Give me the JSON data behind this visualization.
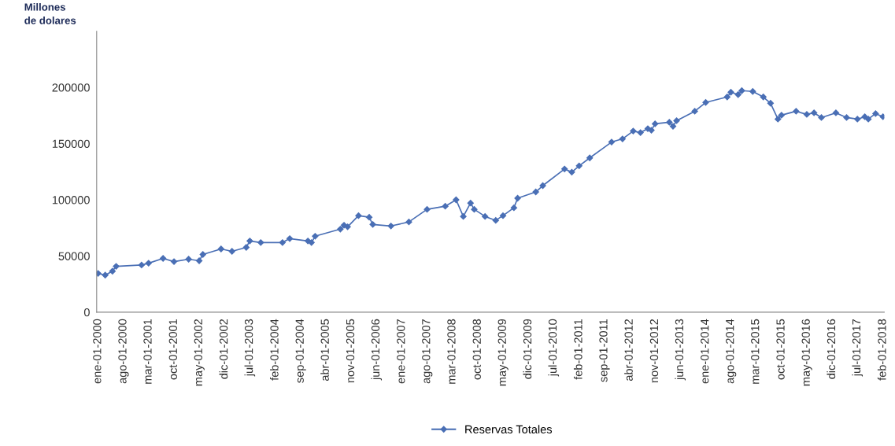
{
  "chart_data": {
    "type": "line",
    "ylabel": "Millones\nde dolares",
    "marker": "diamond",
    "line_style": "solid",
    "grid": false,
    "legend": "bottom",
    "x": [
      "2000-01",
      "2000-03",
      "2000-05",
      "2000-06",
      "2001-01",
      "2001-03",
      "2001-07",
      "2001-10",
      "2002-02",
      "2002-05",
      "2002-06",
      "2002-11",
      "2003-02",
      "2003-06",
      "2003-07",
      "2003-10",
      "2004-04",
      "2004-06",
      "2004-11",
      "2004-12",
      "2005-01",
      "2005-08",
      "2005-09",
      "2005-10",
      "2006-01",
      "2006-04",
      "2006-05",
      "2006-10",
      "2007-03",
      "2007-08",
      "2008-01",
      "2008-04",
      "2008-06",
      "2008-08",
      "2008-09",
      "2008-12",
      "2009-03",
      "2009-05",
      "2009-08",
      "2009-09",
      "2010-02",
      "2010-04",
      "2010-10",
      "2010-12",
      "2011-02",
      "2011-05",
      "2011-11",
      "2012-02",
      "2012-05",
      "2012-07",
      "2012-09",
      "2012-10",
      "2012-11",
      "2013-03",
      "2013-04",
      "2013-05",
      "2013-10",
      "2014-01",
      "2014-07",
      "2014-08",
      "2014-10",
      "2014-11",
      "2015-02",
      "2015-05",
      "2015-07",
      "2015-09",
      "2015-10",
      "2016-02",
      "2016-05",
      "2016-07",
      "2016-09",
      "2017-01",
      "2017-04",
      "2017-07",
      "2017-09",
      "2017-10",
      "2017-12",
      "2018-02"
    ],
    "series": [
      {
        "name": "Reservas Totales",
        "color": "#4a6fb5",
        "values": [
          34500,
          33000,
          36500,
          40800,
          42000,
          43600,
          47900,
          45000,
          47200,
          45800,
          51400,
          56300,
          54200,
          57700,
          63400,
          62000,
          62000,
          65500,
          63400,
          62000,
          67600,
          73900,
          77400,
          76000,
          85900,
          84500,
          78100,
          76700,
          80300,
          91500,
          94300,
          100000,
          85200,
          97100,
          91500,
          85200,
          81700,
          85900,
          92900,
          101400,
          107000,
          112600,
          127400,
          124600,
          130200,
          137300,
          151400,
          154200,
          161200,
          159800,
          163300,
          161900,
          167600,
          169000,
          165400,
          170400,
          178800,
          186600,
          191500,
          195700,
          193600,
          197100,
          196400,
          191500,
          185900,
          171800,
          175300,
          178800,
          176000,
          177400,
          173200,
          177400,
          173200,
          171800,
          173900,
          171800,
          176700,
          173900
        ]
      }
    ],
    "xlim": [
      "1999-12-20",
      "2018-02-12"
    ],
    "xticks": [
      {
        "value": "2000-01",
        "label": "ene-01-2000"
      },
      {
        "value": "2000-08",
        "label": "ago-01-2000"
      },
      {
        "value": "2001-03",
        "label": "mar-01-2001"
      },
      {
        "value": "2001-10",
        "label": "oct-01-2001"
      },
      {
        "value": "2002-05",
        "label": "may-01-2002"
      },
      {
        "value": "2002-12",
        "label": "dic-01-2002"
      },
      {
        "value": "2003-07",
        "label": "jul-01-2003"
      },
      {
        "value": "2004-02",
        "label": "feb-01-2004"
      },
      {
        "value": "2004-09",
        "label": "sep-01-2004"
      },
      {
        "value": "2005-04",
        "label": "abr-01-2005"
      },
      {
        "value": "2005-11",
        "label": "nov-01-2005"
      },
      {
        "value": "2006-06",
        "label": "jun-01-2006"
      },
      {
        "value": "2007-01",
        "label": "ene-01-2007"
      },
      {
        "value": "2007-08",
        "label": "ago-01-2007"
      },
      {
        "value": "2008-03",
        "label": "mar-01-2008"
      },
      {
        "value": "2008-10",
        "label": "oct-01-2008"
      },
      {
        "value": "2009-05",
        "label": "may-01-2009"
      },
      {
        "value": "2009-12",
        "label": "dic-01-2009"
      },
      {
        "value": "2010-07",
        "label": "jul-01-2010"
      },
      {
        "value": "2011-02",
        "label": "feb-01-2011"
      },
      {
        "value": "2011-09",
        "label": "sep-01-2011"
      },
      {
        "value": "2012-04",
        "label": "abr-01-2012"
      },
      {
        "value": "2012-11",
        "label": "nov-01-2012"
      },
      {
        "value": "2013-06",
        "label": "jun-01-2013"
      },
      {
        "value": "2014-01",
        "label": "ene-01-2014"
      },
      {
        "value": "2014-08",
        "label": "ago-01-2014"
      },
      {
        "value": "2015-03",
        "label": "mar-01-2015"
      },
      {
        "value": "2015-10",
        "label": "oct-01-2015"
      },
      {
        "value": "2016-05",
        "label": "may-01-2016"
      },
      {
        "value": "2016-12",
        "label": "dic-01-2016"
      },
      {
        "value": "2017-07",
        "label": "jul-01-2017"
      },
      {
        "value": "2018-02",
        "label": "feb-01-2018"
      }
    ],
    "ylim": [
      0,
      250000
    ],
    "yticks": [
      0,
      50000,
      100000,
      150000,
      200000
    ]
  }
}
